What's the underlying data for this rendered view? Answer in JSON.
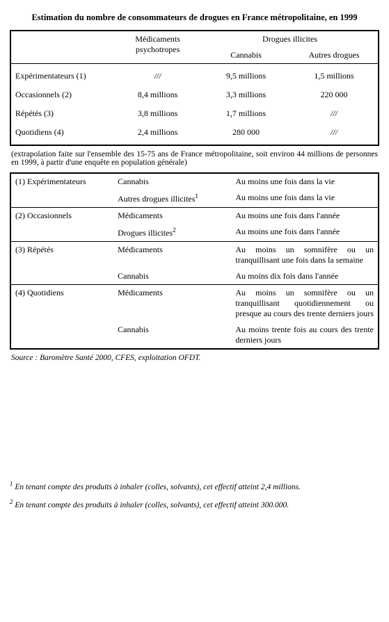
{
  "title": "Estimation du nombre de consommateurs de drogues en France métropolitaine, en 1999",
  "main_table": {
    "header_med": "Médicaments psychotropes",
    "header_ill": "Drogues illicites",
    "sub_cannabis": "Cannabis",
    "sub_autres": "Autres drogues",
    "rows": [
      {
        "label": "Expérimentateurs (1)",
        "med": "///",
        "cannabis": "9,5 millions",
        "autres": "1,5 millions",
        "med_ital": true
      },
      {
        "label": "Occasionnels (2)",
        "med": "8,4 millions",
        "cannabis": "3,3 millions",
        "autres": "220 000"
      },
      {
        "label": "Répétés (3)",
        "med": "3,8 millions",
        "cannabis": "1,7 millions",
        "autres": "///",
        "autres_ital": true
      },
      {
        "label": "Quotidiens (4)",
        "med": "2,4 millions",
        "cannabis": "280 000",
        "autres": "///",
        "autres_ital": true
      }
    ]
  },
  "extrapolation": "(extrapolation faite sur l'ensemble des 15-75 ans de France métropolitaine, soit environ 44 millions de personnes en 1999, à partir d'une enquête en population générale)",
  "defs": [
    {
      "label": "(1) Expérimentateurs",
      "items": [
        {
          "c2": "Cannabis",
          "c3": "Au moins une fois dans la vie"
        },
        {
          "c2_html": "Autres drogues illicites<sup>1</sup>",
          "c3": "Au moins une fois dans la vie"
        }
      ]
    },
    {
      "label": "(2) Occasionnels",
      "items": [
        {
          "c2": "Médicaments",
          "c3": "Au moins une fois dans l'année"
        },
        {
          "c2_html": "Drogues illicites<sup>2</sup>",
          "c3": "Au moins une fois dans l'année"
        }
      ]
    },
    {
      "label": "(3) Répétés",
      "items": [
        {
          "c2": "Médicaments",
          "c3": "Au moins un somnifère ou un tranquillisant une fois dans la semaine"
        },
        {
          "c2": "Cannabis",
          "c3": "Au moins dix fois dans l'année"
        }
      ]
    },
    {
      "label": "(4) Quotidiens",
      "items": [
        {
          "c2": "Médicaments",
          "c3": "Au moins un somnifère ou un tranquillisant quotidiennement ou presque au cours des trente derniers jours"
        },
        {
          "c2": "Cannabis",
          "c3": "Au moins trente fois au cours des trente derniers jours"
        }
      ]
    }
  ],
  "source": "Source : Baromètre Santé 2000, CFES, exploitation OFDT.",
  "footnote1_html": "<sup>1</sup> En tenant compte des produits à inhaler (colles, solvants), cet effectif atteint 2,4 millions.",
  "footnote2_html": "<sup>2</sup> En tenant compte des produits à inhaler (colles, solvants), cet effectif atteint 300.000."
}
